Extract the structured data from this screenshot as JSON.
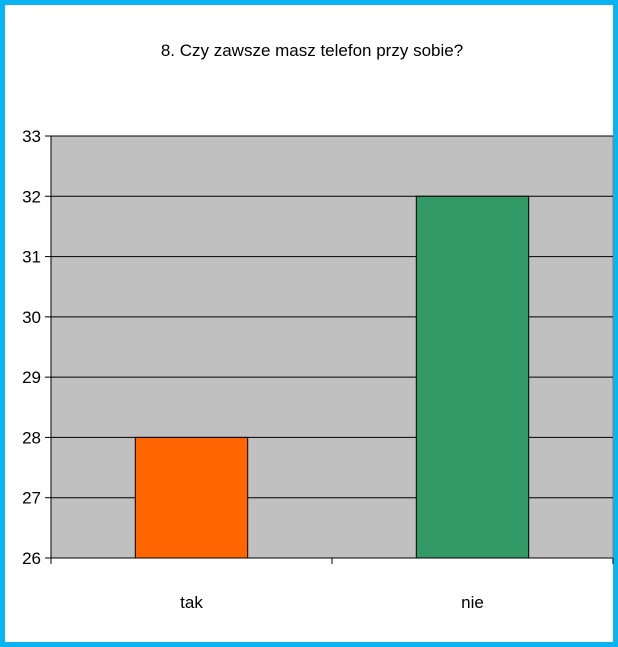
{
  "chart_data": {
    "type": "bar",
    "title": "8. Czy zawsze masz telefon przy sobie?",
    "categories": [
      "tak",
      "nie"
    ],
    "values": [
      28,
      32
    ],
    "bar_colors": [
      "#ff6600",
      "#339966"
    ],
    "ylim": [
      26,
      33
    ],
    "yticks": [
      "26",
      "27",
      "28",
      "29",
      "30",
      "31",
      "32",
      "33"
    ],
    "grid": true,
    "plot_background": "#c0c0c0",
    "frame_border_color": "#0bb4f0",
    "xlabel": "",
    "ylabel": ""
  }
}
